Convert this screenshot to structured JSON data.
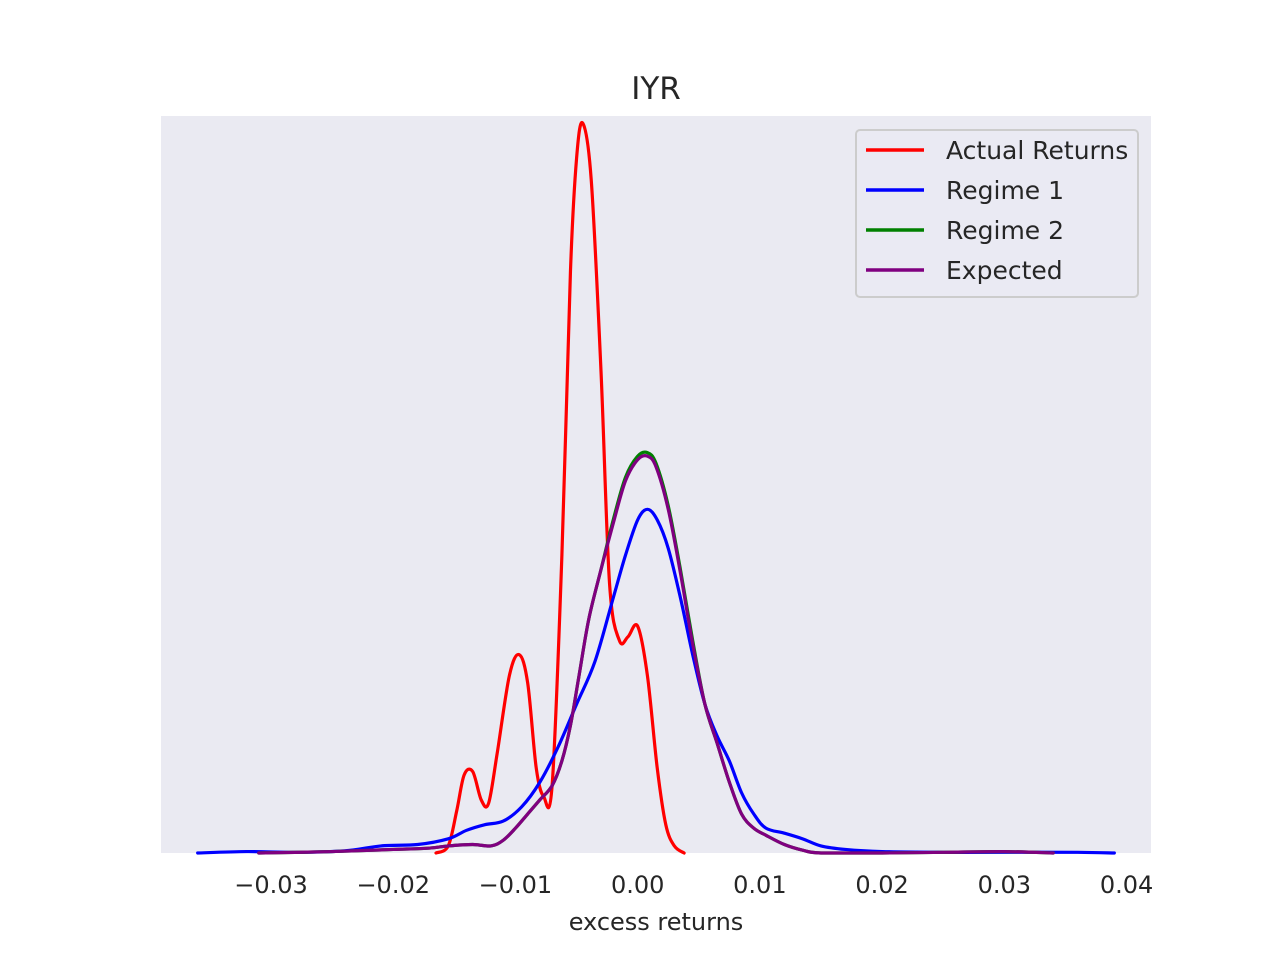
{
  "chart_data": {
    "type": "line",
    "title": "IYR",
    "xlabel": "excess returns",
    "ylabel": "",
    "xlim": [
      -0.039,
      0.042
    ],
    "ylim": [
      0,
      104
    ],
    "grid": false,
    "legend_position": "top-right",
    "x_ticks": [
      -0.03,
      -0.02,
      -0.01,
      0.0,
      0.01,
      0.02,
      0.03,
      0.04
    ],
    "x_tick_labels": [
      "−0.03",
      "−0.02",
      "−0.01",
      "0.00",
      "0.01",
      "0.02",
      "0.03",
      "0.04"
    ],
    "series": [
      {
        "name": "Actual Returns",
        "color": "#ff0000",
        "points": [
          [
            -0.0165,
            0.0
          ],
          [
            -0.0155,
            1.0
          ],
          [
            -0.0148,
            6.0
          ],
          [
            -0.0142,
            11.0
          ],
          [
            -0.0135,
            11.5
          ],
          [
            -0.0128,
            7.5
          ],
          [
            -0.0122,
            7.0
          ],
          [
            -0.0115,
            14.0
          ],
          [
            -0.0105,
            25.0
          ],
          [
            -0.0097,
            28.0
          ],
          [
            -0.009,
            24.0
          ],
          [
            -0.0083,
            12.0
          ],
          [
            -0.0077,
            8.0
          ],
          [
            -0.007,
            9.5
          ],
          [
            -0.0062,
            42.0
          ],
          [
            -0.0055,
            82.0
          ],
          [
            -0.005,
            98.0
          ],
          [
            -0.0045,
            103.0
          ],
          [
            -0.0038,
            95.0
          ],
          [
            -0.003,
            68.0
          ],
          [
            -0.0023,
            38.0
          ],
          [
            -0.0015,
            30.0
          ],
          [
            -0.0008,
            30.5
          ],
          [
            0.0,
            32.0
          ],
          [
            0.0008,
            25.0
          ],
          [
            0.0016,
            12.0
          ],
          [
            0.0023,
            4.0
          ],
          [
            0.003,
            1.0
          ],
          [
            0.0038,
            0.0
          ]
        ]
      },
      {
        "name": "Regime 1",
        "color": "#0000ff",
        "points": [
          [
            -0.036,
            0.0
          ],
          [
            -0.032,
            0.2
          ],
          [
            -0.028,
            0.1
          ],
          [
            -0.024,
            0.3
          ],
          [
            -0.021,
            1.0
          ],
          [
            -0.018,
            1.2
          ],
          [
            -0.0155,
            2.0
          ],
          [
            -0.014,
            3.2
          ],
          [
            -0.0125,
            4.0
          ],
          [
            -0.011,
            4.5
          ],
          [
            -0.0095,
            6.5
          ],
          [
            -0.008,
            10.0
          ],
          [
            -0.0065,
            15.0
          ],
          [
            -0.005,
            21.0
          ],
          [
            -0.0035,
            27.0
          ],
          [
            -0.002,
            36.0
          ],
          [
            -0.001,
            42.0
          ],
          [
            0.0,
            47.0
          ],
          [
            0.0008,
            48.5
          ],
          [
            0.0016,
            47.0
          ],
          [
            0.0025,
            43.0
          ],
          [
            0.0035,
            36.0
          ],
          [
            0.0045,
            28.0
          ],
          [
            0.0055,
            21.0
          ],
          [
            0.0065,
            16.5
          ],
          [
            0.0075,
            13.0
          ],
          [
            0.0085,
            8.5
          ],
          [
            0.0095,
            5.5
          ],
          [
            0.0105,
            3.5
          ],
          [
            0.012,
            2.8
          ],
          [
            0.0135,
            2.0
          ],
          [
            0.015,
            1.0
          ],
          [
            0.017,
            0.5
          ],
          [
            0.02,
            0.2
          ],
          [
            0.025,
            0.1
          ],
          [
            0.03,
            0.1
          ],
          [
            0.036,
            0.1
          ],
          [
            0.039,
            0.0
          ]
        ]
      },
      {
        "name": "Regime 2",
        "color": "#008000",
        "points": [
          [
            -0.031,
            0.0
          ],
          [
            -0.025,
            0.2
          ],
          [
            -0.02,
            0.5
          ],
          [
            -0.017,
            0.7
          ],
          [
            -0.0155,
            1.0
          ],
          [
            -0.0135,
            1.2
          ],
          [
            -0.012,
            1.0
          ],
          [
            -0.011,
            1.8
          ],
          [
            -0.01,
            3.5
          ],
          [
            -0.009,
            5.5
          ],
          [
            -0.008,
            7.5
          ],
          [
            -0.007,
            9.5
          ],
          [
            -0.0062,
            13.0
          ],
          [
            -0.0055,
            18.0
          ],
          [
            -0.0048,
            25.0
          ],
          [
            -0.004,
            33.0
          ],
          [
            -0.003,
            40.0
          ],
          [
            -0.002,
            47.0
          ],
          [
            -0.001,
            53.0
          ],
          [
            0.0,
            56.0
          ],
          [
            0.0008,
            56.5
          ],
          [
            0.0015,
            55.0
          ],
          [
            0.0025,
            49.0
          ],
          [
            0.0035,
            40.0
          ],
          [
            0.0045,
            30.0
          ],
          [
            0.0055,
            21.0
          ],
          [
            0.0065,
            15.5
          ],
          [
            0.0075,
            10.0
          ],
          [
            0.0085,
            5.5
          ],
          [
            0.0095,
            3.5
          ],
          [
            0.0105,
            2.5
          ],
          [
            0.012,
            1.2
          ],
          [
            0.0135,
            0.4
          ],
          [
            0.015,
            0.0
          ],
          [
            0.02,
            0.0
          ],
          [
            0.025,
            0.1
          ],
          [
            0.03,
            0.2
          ],
          [
            0.034,
            0.0
          ]
        ]
      },
      {
        "name": "Expected",
        "color": "#800080",
        "points": [
          [
            -0.031,
            0.0
          ],
          [
            -0.025,
            0.2
          ],
          [
            -0.02,
            0.5
          ],
          [
            -0.017,
            0.7
          ],
          [
            -0.0155,
            1.0
          ],
          [
            -0.0135,
            1.2
          ],
          [
            -0.012,
            1.0
          ],
          [
            -0.011,
            1.8
          ],
          [
            -0.01,
            3.5
          ],
          [
            -0.009,
            5.5
          ],
          [
            -0.008,
            7.5
          ],
          [
            -0.007,
            9.5
          ],
          [
            -0.0062,
            13.0
          ],
          [
            -0.0055,
            18.0
          ],
          [
            -0.0048,
            25.0
          ],
          [
            -0.004,
            33.0
          ],
          [
            -0.003,
            40.0
          ],
          [
            -0.002,
            46.5
          ],
          [
            -0.001,
            52.5
          ],
          [
            0.0,
            55.5
          ],
          [
            0.0008,
            56.0
          ],
          [
            0.0015,
            54.5
          ],
          [
            0.0025,
            48.5
          ],
          [
            0.0035,
            39.5
          ],
          [
            0.0045,
            29.5
          ],
          [
            0.0055,
            21.0
          ],
          [
            0.0065,
            15.5
          ],
          [
            0.0075,
            10.0
          ],
          [
            0.0085,
            5.5
          ],
          [
            0.0095,
            3.5
          ],
          [
            0.0105,
            2.5
          ],
          [
            0.012,
            1.2
          ],
          [
            0.0135,
            0.4
          ],
          [
            0.015,
            0.0
          ],
          [
            0.02,
            0.0
          ],
          [
            0.025,
            0.1
          ],
          [
            0.03,
            0.2
          ],
          [
            0.034,
            0.0
          ]
        ]
      }
    ]
  }
}
